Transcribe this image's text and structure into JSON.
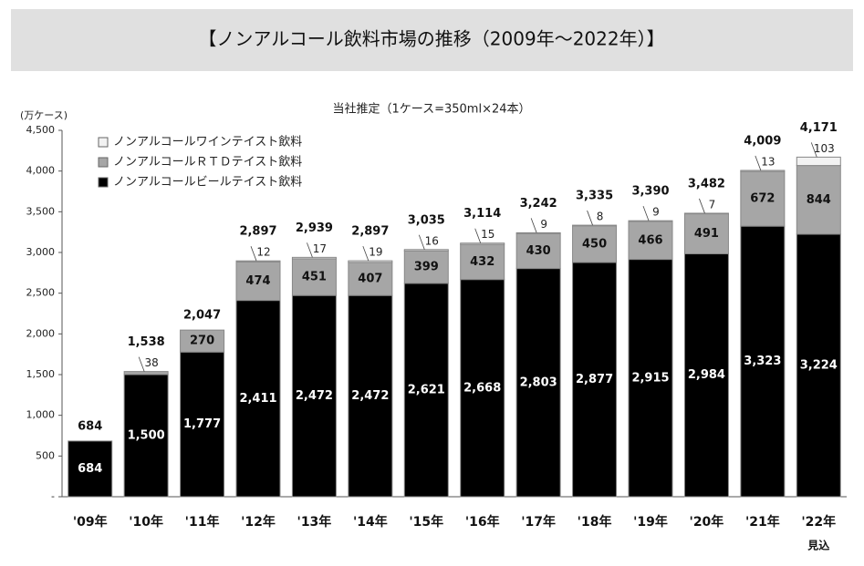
{
  "chart_data": {
    "type": "stacked-bar",
    "title": "【ノンアルコール飲料市場の推移（2009年～2022年）】",
    "subtitle": "当社推定（1ケース=350ml×24本）",
    "y_label": "(万ケース)",
    "forecast_note": "見込",
    "categories": [
      "'09年",
      "'10年",
      "'11年",
      "'12年",
      "'13年",
      "'14年",
      "'15年",
      "'16年",
      "'17年",
      "'18年",
      "'19年",
      "'20年",
      "'21年",
      "'22年"
    ],
    "series": [
      {
        "name": "ノンアルコールビールテイスト飲料",
        "color": "#000000",
        "values": [
          684,
          1500,
          1777,
          2411,
          2472,
          2472,
          2621,
          2668,
          2803,
          2877,
          2915,
          2984,
          3323,
          3224
        ],
        "value_labels": [
          "684",
          "1,500",
          "1,777",
          "2,411",
          "2,472",
          "2,472",
          "2,621",
          "2,668",
          "2,803",
          "2,877",
          "2,915",
          "2,984",
          "3,323",
          "3,224"
        ]
      },
      {
        "name": "ノンアルコールＲＴＤテイスト飲料",
        "color": "#a6a6a6",
        "values": [
          null,
          38,
          270,
          474,
          451,
          407,
          399,
          432,
          430,
          450,
          466,
          491,
          672,
          844
        ]
      },
      {
        "name": "ノンアルコールワインテイスト飲料",
        "color": "#f2f2f2",
        "values": [
          null,
          null,
          null,
          12,
          17,
          19,
          16,
          15,
          9,
          8,
          9,
          7,
          13,
          103
        ]
      }
    ],
    "totals": {
      "values": [
        684,
        1538,
        2047,
        2897,
        2939,
        2897,
        3035,
        3114,
        3242,
        3335,
        3390,
        3482,
        4009,
        4171
      ],
      "value_labels": [
        "684",
        "1,538",
        "2,047",
        "2,897",
        "2,939",
        "2,897",
        "3,035",
        "3,114",
        "3,242",
        "3,335",
        "3,390",
        "3,482",
        "4,009",
        "4,171"
      ]
    },
    "ylim": [
      0,
      4500
    ],
    "yticks": [
      {
        "value": 0,
        "label": "-"
      },
      500,
      {
        "value": 1000,
        "label": "1,000"
      },
      {
        "value": 1500,
        "label": "1,500"
      },
      {
        "value": 2000,
        "label": "2,000"
      },
      {
        "value": 2500,
        "label": "2,500"
      },
      {
        "value": 3000,
        "label": "3,000"
      },
      {
        "value": 3500,
        "label": "3,500"
      },
      {
        "value": 4000,
        "label": "4,000"
      },
      {
        "value": 4500,
        "label": "4,500"
      }
    ],
    "grid": false
  }
}
